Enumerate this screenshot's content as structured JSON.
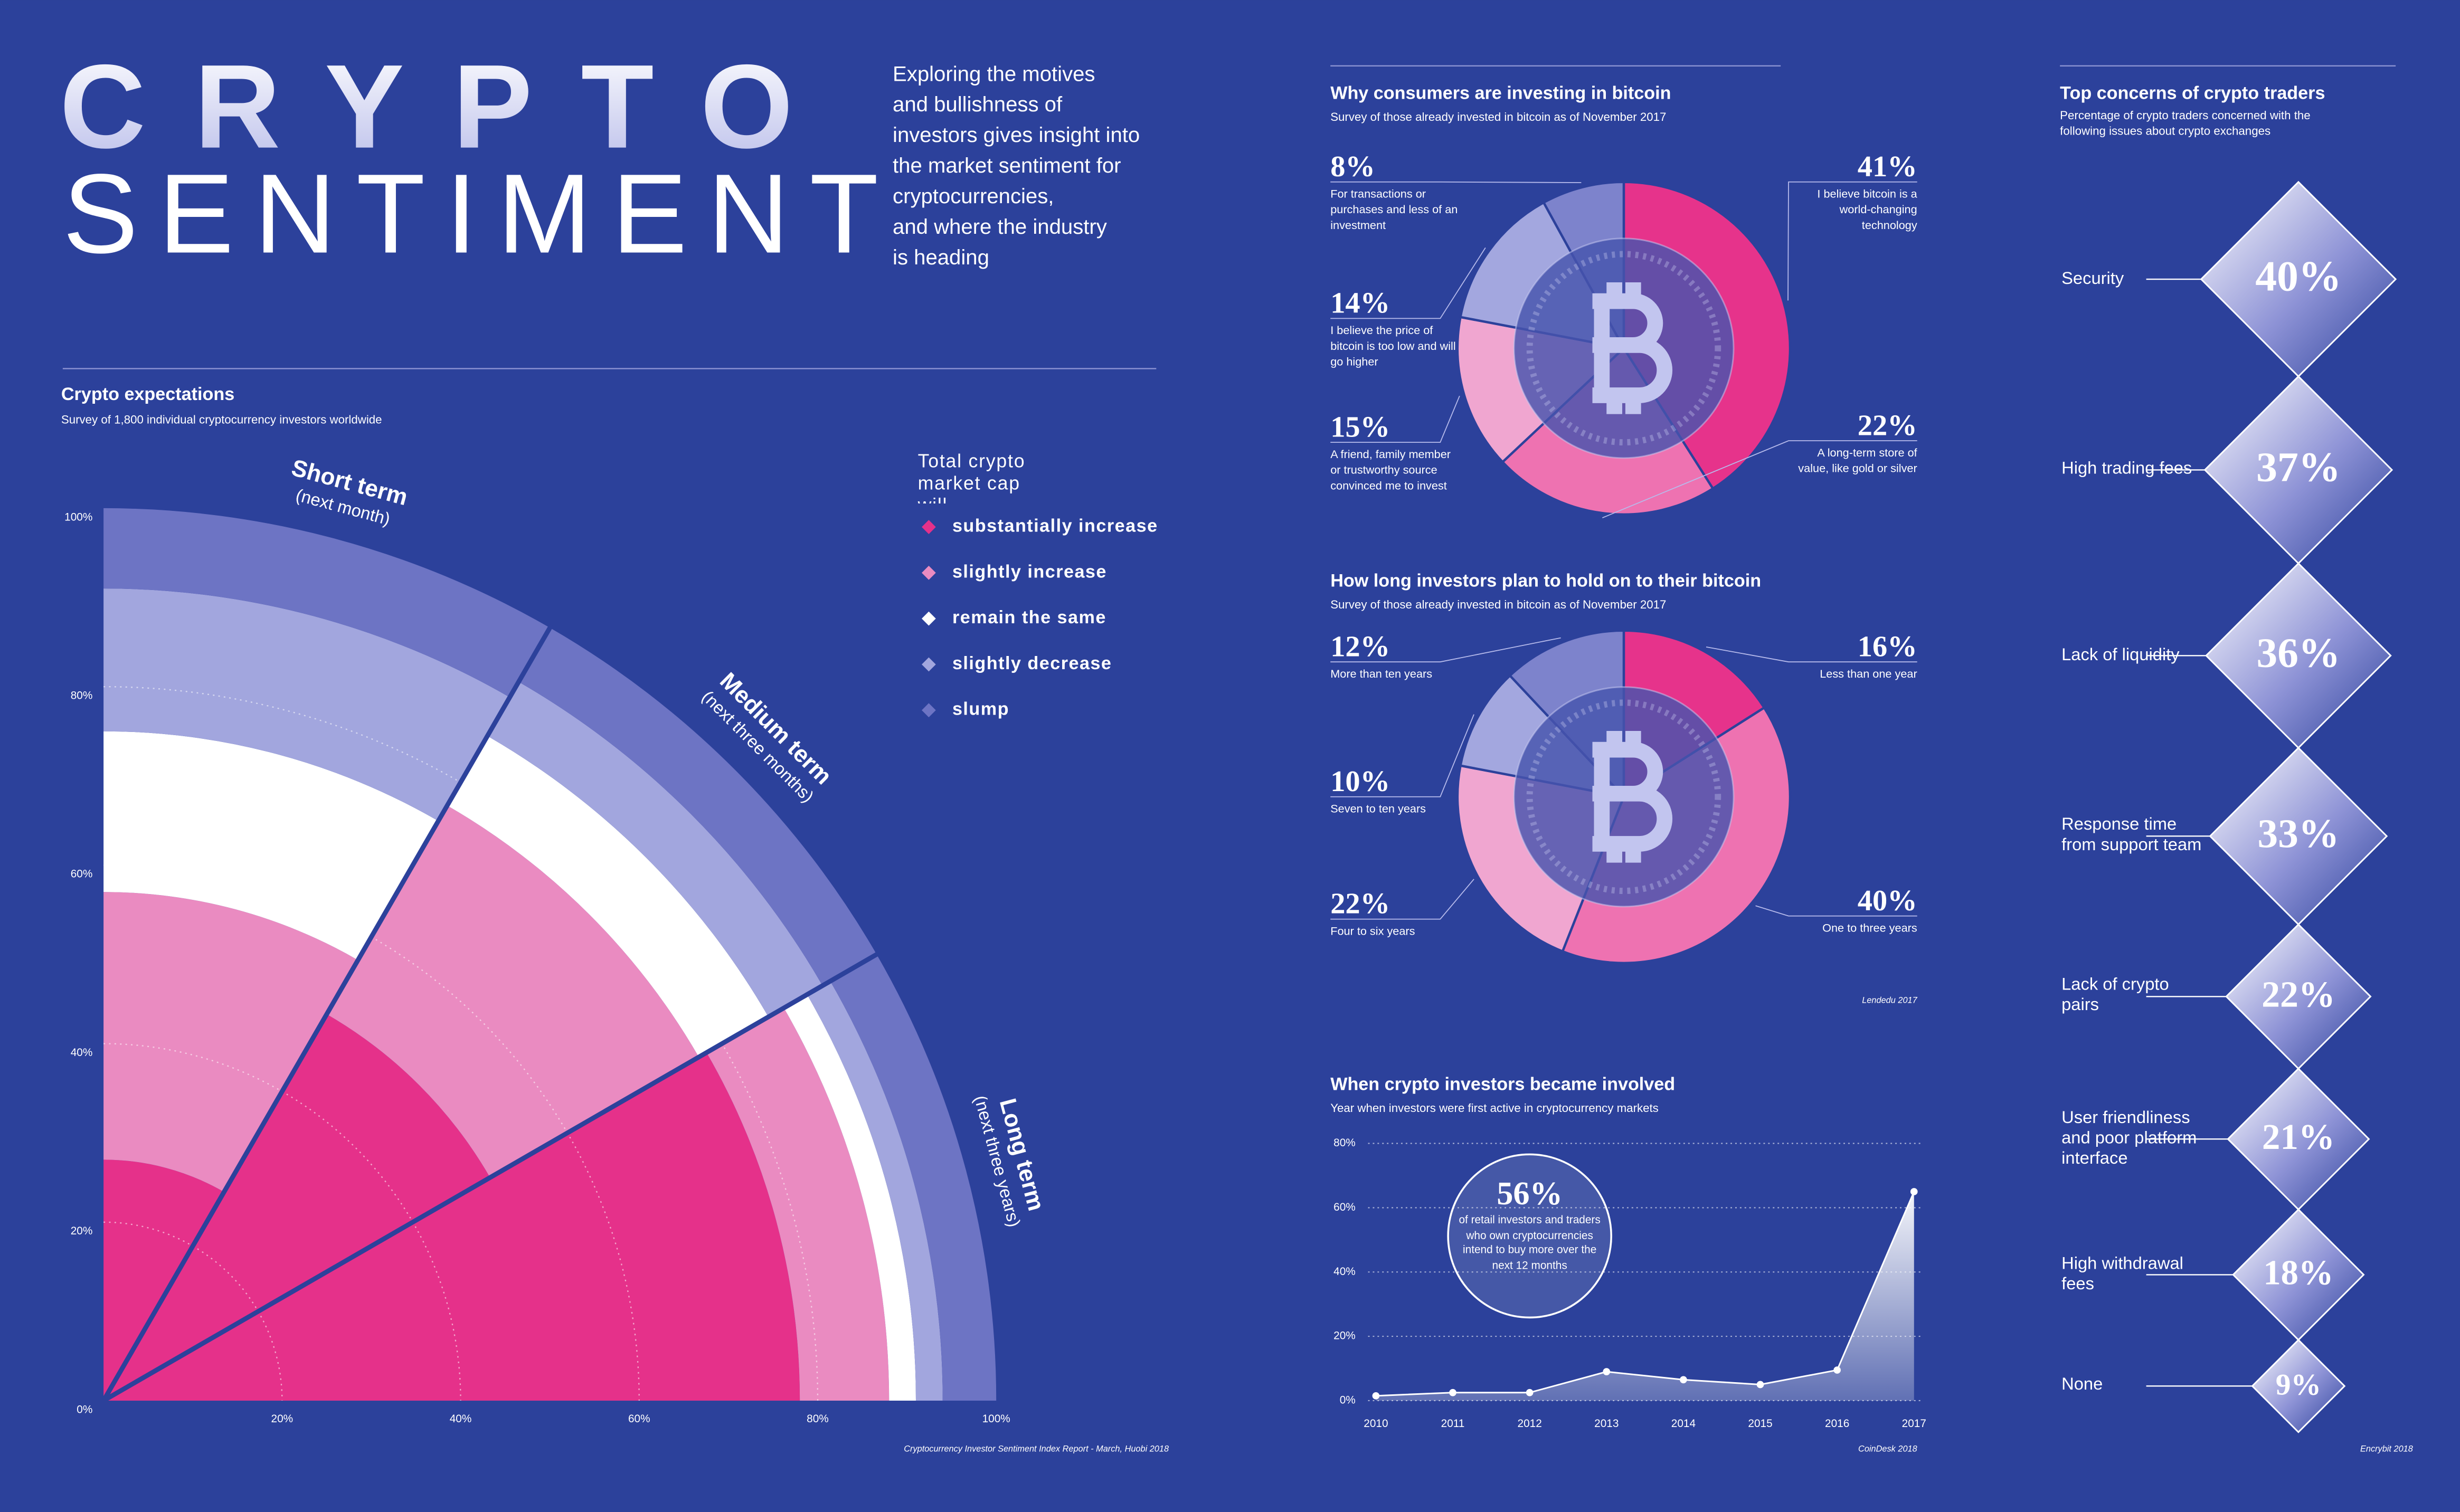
{
  "header": {
    "title_top": "CRYPTO",
    "title_bottom": "SENTIMENT",
    "intro": [
      "Exploring the motives",
      "and bullishness of",
      "investors gives insight into",
      "the market sentiment for",
      "cryptocurrencies,",
      "and where the industry",
      "is heading"
    ]
  },
  "chart_data": [
    {
      "type": "radial-stacked",
      "title": "Crypto expectations",
      "subtitle": "Survey of 1,800 individual cryptocurrency investors worldwide",
      "categories": [
        "Short term",
        "Medium term",
        "Long term"
      ],
      "category_notes": [
        "(next month)",
        "(next three months)",
        "(next three years)"
      ],
      "legend_title": "Total crypto market cap will...",
      "series": [
        {
          "name": "substantially increase",
          "color": "#e5318a",
          "values": [
            27,
            50,
            78
          ]
        },
        {
          "name": "slightly increase",
          "color": "#ea8bc1",
          "values": [
            30,
            27,
            10
          ]
        },
        {
          "name": "remain the same",
          "color": "#ffffff",
          "values": [
            18,
            9,
            3
          ]
        },
        {
          "name": "slightly decrease",
          "color": "#a2a6de",
          "values": [
            16,
            7,
            3
          ]
        },
        {
          "name": "slump",
          "color": "#6d74c4",
          "values": [
            9,
            7,
            6
          ]
        }
      ],
      "ylim": [
        0,
        100
      ],
      "yticks": [
        {
          "value": 0,
          "label": "0%"
        },
        {
          "value": 20,
          "label": "20%"
        },
        {
          "value": 40,
          "label": "40%"
        },
        {
          "value": 60,
          "label": "60%"
        },
        {
          "value": 80,
          "label": "80%"
        },
        {
          "value": 100,
          "label": "100%"
        }
      ],
      "xlim": [
        0,
        100
      ],
      "xticks": [
        {
          "value": 20,
          "label": "20%"
        },
        {
          "value": 40,
          "label": "40%"
        },
        {
          "value": 60,
          "label": "60%"
        },
        {
          "value": 80,
          "label": "80%"
        },
        {
          "value": 100,
          "label": "100%"
        }
      ],
      "grid": true,
      "source": "Cryptocurrency Investor Sentiment Index Report - March, Huobi 2018"
    },
    {
      "type": "pie",
      "title": "Why consumers are investing in bitcoin",
      "subtitle": "Survey of those already invested in bitcoin as of November 2017",
      "categories": [
        "I believe bitcoin is a world-changing technology",
        "A long-term store of value, like gold or silver",
        "A friend, family member or trustworthy source convinced me to invest",
        "I believe the price of bitcoin is too low and will go higher",
        "For transactions or purchases and less of an investment"
      ],
      "values": [
        41,
        22,
        15,
        14,
        8
      ],
      "value_labels": [
        "41%",
        "22%",
        "15%",
        "14%",
        "8%"
      ],
      "colors": [
        "#e6338b",
        "#ee72b1",
        "#f0a6d0",
        "#a3a7df",
        "#7d83cc"
      ]
    },
    {
      "type": "pie",
      "title": "How long investors plan to hold on to their bitcoin",
      "subtitle": "Survey of those already invested in bitcoin as of November 2017",
      "categories": [
        "Less than one year",
        "One to three years",
        "Four to six years",
        "Seven to ten years",
        "More than ten years"
      ],
      "values": [
        16,
        40,
        22,
        10,
        12
      ],
      "value_labels": [
        "16%",
        "40%",
        "22%",
        "10%",
        "12%"
      ],
      "colors": [
        "#e6338b",
        "#ee72b1",
        "#f0a6d0",
        "#a3a7df",
        "#7d83cc"
      ],
      "source": "Lendedu 2017"
    },
    {
      "type": "area",
      "title": "When crypto investors became involved",
      "subtitle": "Year when investors were first active in cryptocurrency markets",
      "x": [
        2010,
        2011,
        2012,
        2013,
        2014,
        2015,
        2016,
        2017
      ],
      "values": [
        1.5,
        2.5,
        2.5,
        9,
        6.5,
        5,
        9.5,
        65
      ],
      "xlim": [
        2010,
        2017
      ],
      "xticks": [
        2010,
        2011,
        2012,
        2013,
        2014,
        2015,
        2016,
        2017
      ],
      "ylim": [
        0,
        80
      ],
      "yticks": [
        {
          "value": 0,
          "label": "0%"
        },
        {
          "value": 20,
          "label": "20%"
        },
        {
          "value": 40,
          "label": "40%"
        },
        {
          "value": 60,
          "label": "60%"
        },
        {
          "value": 80,
          "label": "80%"
        }
      ],
      "grid": true,
      "annotation": {
        "headline": "56%",
        "text": "of retail investors and traders who own cryptocurrencies intend to buy more over the next 12 months"
      },
      "source": "CoinDesk 2018"
    },
    {
      "type": "diamond",
      "title": "Top concerns of crypto traders",
      "subtitle": "Percentage of crypto traders concerned with the following issues about crypto exchanges",
      "categories": [
        "Security",
        "High trading fees",
        "Lack of liquidity",
        "Response time from support team",
        "Lack of crypto pairs",
        "User friendliness and poor platform interface",
        "High withdrawal fees",
        "None"
      ],
      "values": [
        40,
        37,
        36,
        33,
        22,
        21,
        18,
        9
      ],
      "value_labels": [
        "40%",
        "37%",
        "36%",
        "33%",
        "22%",
        "21%",
        "18%",
        "9%"
      ],
      "source": "Encrybit 2018"
    }
  ]
}
